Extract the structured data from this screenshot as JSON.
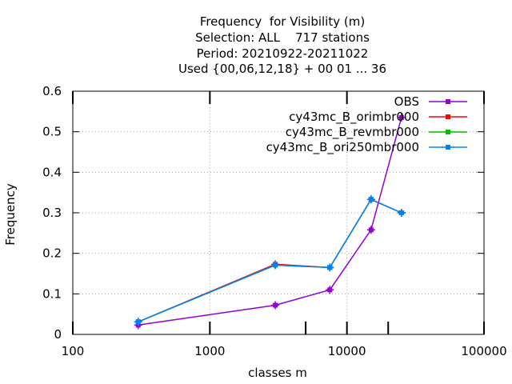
{
  "chart_data": {
    "type": "line",
    "title_lines": [
      "Frequency  for Visibility (m)",
      "Selection: ALL    717 stations",
      "Period: 20210922-20211022",
      "Used {00,06,12,18} + 00 01 ... 36"
    ],
    "xlabel": "classes m",
    "ylabel": "Frequency",
    "x_scale": "log",
    "xlim": [
      100,
      100000
    ],
    "ylim": [
      0,
      0.6
    ],
    "x_ticks": [
      100,
      1000,
      10000,
      100000
    ],
    "x_tick_labels": [
      "100",
      "1000",
      "10000",
      "100000"
    ],
    "x_minor_ticks": [
      5000,
      20000
    ],
    "y_ticks": [
      0,
      0.1,
      0.2,
      0.3,
      0.4,
      0.5,
      0.6
    ],
    "y_tick_labels": [
      "0",
      "0.1",
      "0.2",
      "0.3",
      "0.4",
      "0.5",
      "0.6"
    ],
    "grid": true,
    "legend_position": "top-right",
    "x": [
      300,
      3000,
      7500,
      15000,
      25000
    ],
    "series": [
      {
        "name": "OBS",
        "color": "#9400d3",
        "values": [
          0.023,
          0.072,
          0.11,
          0.258,
          0.535
        ]
      },
      {
        "name": "cy43mc_B_orimbr000",
        "color": "#ff0000",
        "values": [
          0.031,
          0.173,
          0.165,
          0.333,
          0.3
        ]
      },
      {
        "name": "cy43mc_B_revmbr000",
        "color": "#00c000",
        "values": [
          0.031,
          0.171,
          0.165,
          0.333,
          0.3
        ]
      },
      {
        "name": "cy43mc_B_ori250mbr000",
        "color": "#0080ff",
        "values": [
          0.031,
          0.171,
          0.165,
          0.333,
          0.3
        ]
      }
    ]
  }
}
